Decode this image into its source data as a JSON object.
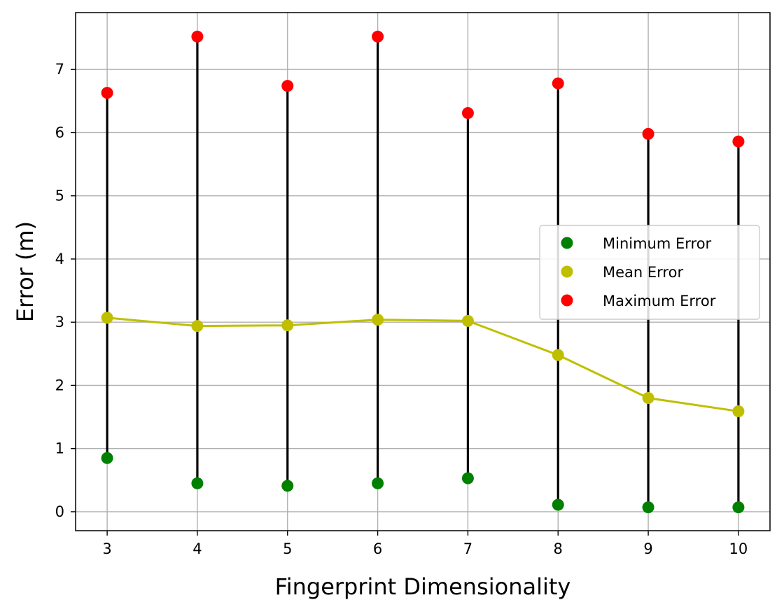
{
  "chart_data": {
    "type": "scatter",
    "title": "",
    "xlabel": "Fingerprint Dimensionality",
    "ylabel": "Error (m)",
    "x": [
      3,
      4,
      5,
      6,
      7,
      8,
      9,
      10
    ],
    "xlim": [
      2.65,
      10.35
    ],
    "ylim": [
      -0.3,
      7.9
    ],
    "xticks": [
      3,
      4,
      5,
      6,
      7,
      8,
      9,
      10
    ],
    "yticks": [
      0,
      1,
      2,
      3,
      4,
      5,
      6,
      7
    ],
    "grid": true,
    "legend_position": "center-right",
    "range_line_color": "#000000",
    "series": [
      {
        "name": "Minimum Error",
        "color": "#008000",
        "line": false,
        "values": [
          0.85,
          0.45,
          0.41,
          0.45,
          0.53,
          0.11,
          0.07,
          0.07
        ]
      },
      {
        "name": "Mean Error",
        "color": "#bfbf00",
        "line": true,
        "values": [
          3.07,
          2.94,
          2.95,
          3.04,
          3.02,
          2.48,
          1.8,
          1.59
        ]
      },
      {
        "name": "Maximum Error",
        "color": "#ff0000",
        "line": false,
        "values": [
          6.63,
          7.52,
          6.74,
          7.52,
          6.31,
          6.78,
          5.98,
          5.86
        ]
      }
    ]
  }
}
